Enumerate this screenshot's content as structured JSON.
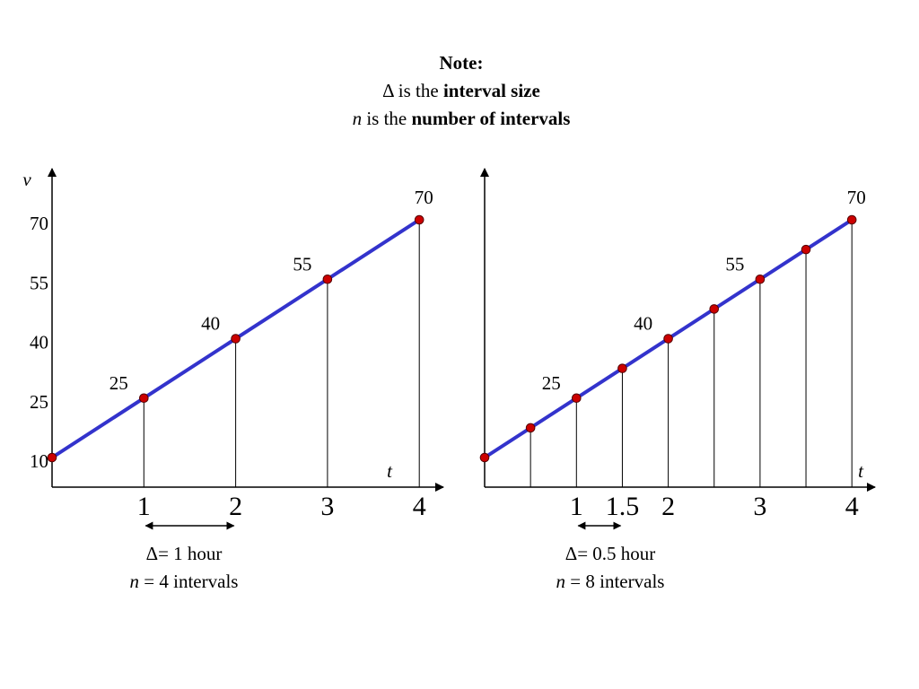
{
  "note": {
    "title": "Note:",
    "line1_prefix": "Δ is the ",
    "line1_bold": "interval size",
    "line2_italic": "n",
    "line2_prefix": " is the ",
    "line2_bold": "number of intervals"
  },
  "colors": {
    "line": "#3333cc",
    "point_fill": "#cc0000",
    "point_stroke": "#550000",
    "axis": "#000000"
  },
  "chart_data": [
    {
      "type": "line",
      "x_axis_label": "t",
      "y_axis_label": "v",
      "x_tick_labels": [
        "1",
        "2",
        "3",
        "4"
      ],
      "y_tick_labels": [
        "10",
        "25",
        "40",
        "55",
        "70"
      ],
      "xlim": [
        0,
        4
      ],
      "ylim": [
        10,
        70
      ],
      "x": [
        0,
        1,
        2,
        3,
        4
      ],
      "values": [
        10,
        25,
        40,
        55,
        70
      ],
      "point_value_labels": [
        "",
        "25",
        "40",
        "55",
        "70"
      ],
      "interval_marker": {
        "from": 1,
        "to": 2
      },
      "caption_line1": "Δ= 1 hour",
      "caption_line2_italic": "n",
      "caption_line2_rest": " = 4 intervals"
    },
    {
      "type": "line",
      "x_axis_label": "t",
      "y_axis_label": "",
      "x_tick_labels": [
        "1",
        "1.5",
        "2",
        "3",
        "4"
      ],
      "x_tick_values": [
        1,
        1.5,
        2,
        3,
        4
      ],
      "y_tick_labels": [],
      "xlim": [
        0,
        4
      ],
      "ylim": [
        10,
        70
      ],
      "x": [
        0,
        0.5,
        1,
        1.5,
        2,
        2.5,
        3,
        3.5,
        4
      ],
      "values": [
        10,
        17.5,
        25,
        32.5,
        40,
        47.5,
        55,
        62.5,
        70
      ],
      "point_value_labels": [
        "",
        "",
        "25",
        "",
        "40",
        "",
        "55",
        "",
        "70"
      ],
      "interval_marker": {
        "from": 1,
        "to": 1.5
      },
      "caption_line1": "Δ= 0.5 hour",
      "caption_line2_italic": "n",
      "caption_line2_rest": " = 8 intervals"
    }
  ]
}
